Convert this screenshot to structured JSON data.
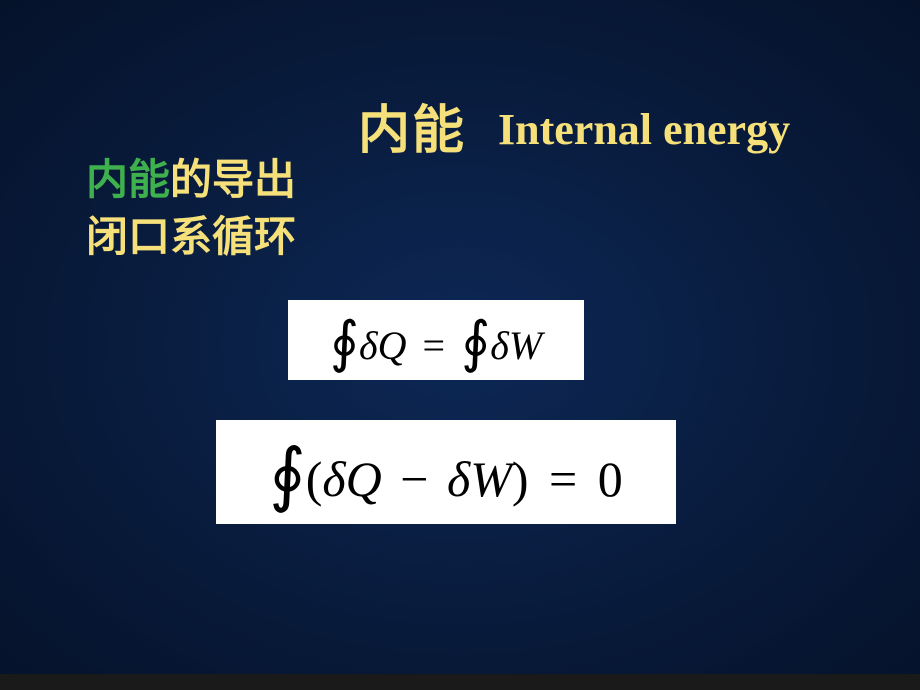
{
  "colors": {
    "background_center": "#0d2856",
    "background_edge": "#05122a",
    "title_cn": "#f5e07a",
    "title_en": "#f5e07a",
    "accent_green": "#3eb04d",
    "body_text": "#f5e07a",
    "eq_bg": "#ffffff",
    "eq_text": "#000000",
    "footer": "#1a1a1a"
  },
  "typography": {
    "title_cn_fontsize": 52,
    "title_en_fontsize": 44,
    "sub_fontsize": 42,
    "eq1_fontsize": 40,
    "eq2_fontsize": 50,
    "cn_font": "SimHei",
    "en_font": "Times New Roman"
  },
  "title": {
    "cn": "内能",
    "en": "Internal energy"
  },
  "subtitles": [
    {
      "accent": "内能",
      "rest": "的导出"
    },
    {
      "accent": "",
      "rest": "闭口系循环"
    }
  ],
  "equations": {
    "eq1": "∮ δQ = ∮ δW",
    "eq2": "∮ (δQ − δW) = 0"
  }
}
